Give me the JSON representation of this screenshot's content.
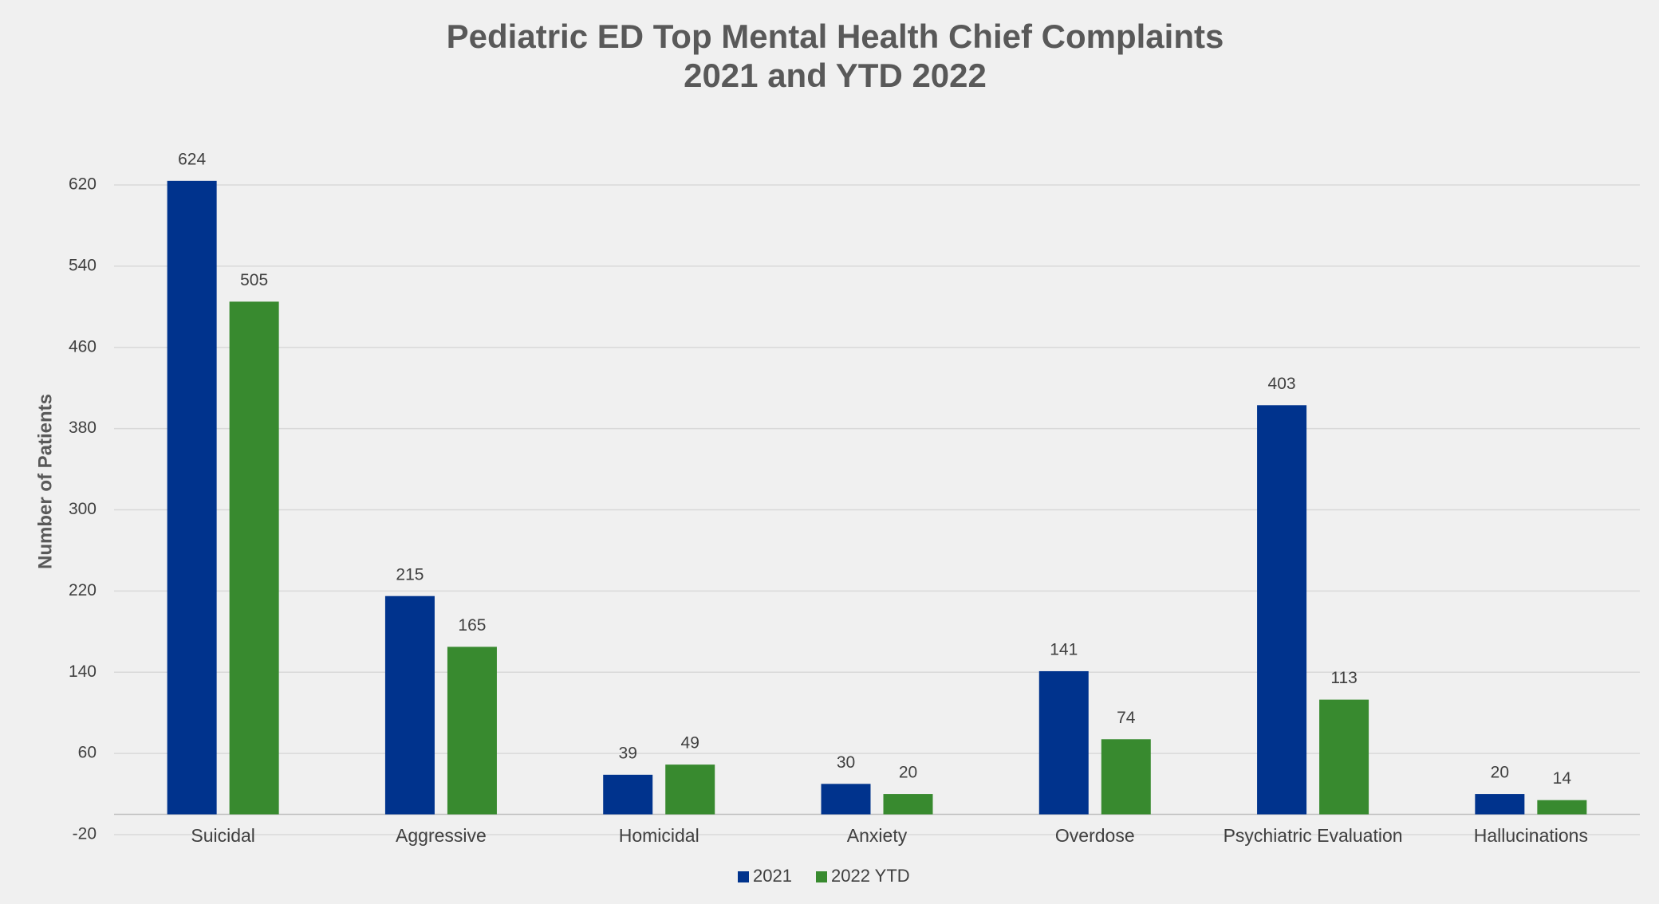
{
  "chart_data": {
    "type": "bar",
    "title": "Pediatric ED Top Mental Health Chief Complaints",
    "subtitle": "2021 and YTD 2022",
    "y_label": "Number of Patients",
    "categories": [
      "Suicidal",
      "Aggressive",
      "Homicidal",
      "Anxiety",
      "Overdose",
      "Psychiatric Evaluation",
      "Hallucinations"
    ],
    "series": [
      {
        "name": "2021",
        "color": "#00338d",
        "values": [
          624,
          215,
          39,
          30,
          141,
          403,
          20
        ]
      },
      {
        "name": "2022 YTD",
        "color": "#388a2f",
        "values": [
          505,
          165,
          49,
          20,
          74,
          113,
          14
        ]
      }
    ],
    "ylim": [
      -20,
      660
    ],
    "yticks": [
      -20,
      60,
      140,
      220,
      300,
      380,
      460,
      540,
      620
    ],
    "grid": true,
    "legend": "bottom"
  }
}
